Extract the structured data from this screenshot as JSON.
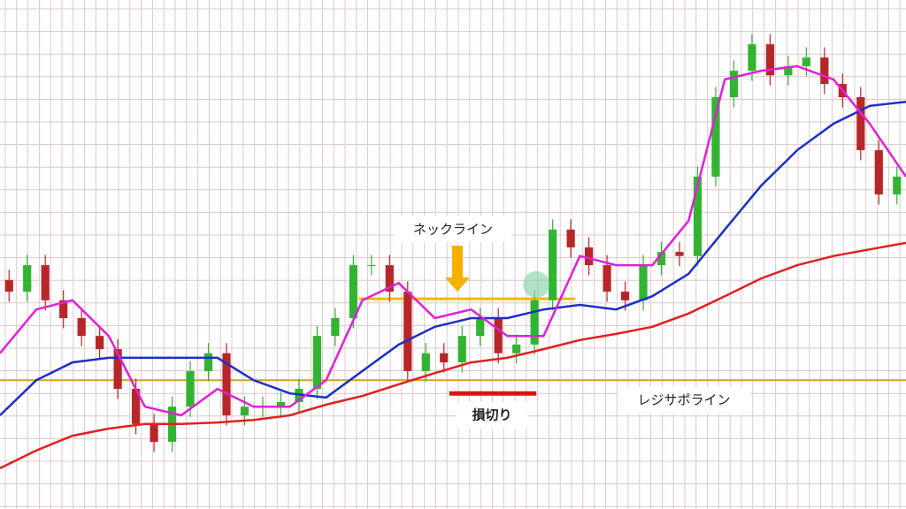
{
  "chart_data": {
    "type": "candlestick",
    "xlim": [
      0,
      100
    ],
    "ylim": [
      0,
      100
    ],
    "grid": true,
    "up_color": "#32b432",
    "down_color": "#b8262a",
    "x": [
      1,
      3,
      5,
      7,
      9,
      11,
      13,
      15,
      17,
      19,
      21,
      23,
      25,
      27,
      29,
      31,
      33,
      35,
      37,
      39,
      41,
      43,
      45,
      47,
      49,
      51,
      53,
      55,
      57,
      59,
      61,
      63,
      65,
      67,
      69,
      71,
      73,
      75,
      77,
      79,
      81,
      83,
      85,
      87,
      89,
      91,
      93,
      95,
      97,
      99
    ],
    "open": [
      45.0,
      42.7,
      47.9,
      41.0,
      37.5,
      34.0,
      31.4,
      23.6,
      16.7,
      13.2,
      20.1,
      27.1,
      30.6,
      18.4,
      20.1,
      20.1,
      21.0,
      23.6,
      34.0,
      37.5,
      47.9,
      47.9,
      42.7,
      27.1,
      30.6,
      28.8,
      34.0,
      37.5,
      30.6,
      32.3,
      41.0,
      54.9,
      51.4,
      47.9,
      42.7,
      41.0,
      47.9,
      50.5,
      49.7,
      65.3,
      80.9,
      86.1,
      91.3,
      85.2,
      87.0,
      88.7,
      83.5,
      80.9,
      70.5,
      61.8
    ],
    "close": [
      42.7,
      47.9,
      41.0,
      37.5,
      34.0,
      31.4,
      23.6,
      16.7,
      13.2,
      20.1,
      27.1,
      30.6,
      18.4,
      20.1,
      20.1,
      21.0,
      23.6,
      34.0,
      37.5,
      47.9,
      47.9,
      42.7,
      27.1,
      30.6,
      28.8,
      34.0,
      37.5,
      30.6,
      32.3,
      41.0,
      54.9,
      51.4,
      47.9,
      42.7,
      41.0,
      47.9,
      50.5,
      49.7,
      65.3,
      80.9,
      86.1,
      91.3,
      85.2,
      87.0,
      88.7,
      83.5,
      80.9,
      70.5,
      61.8,
      65.3
    ],
    "high": [
      47.0,
      49.9,
      49.9,
      43.0,
      39.5,
      36.0,
      33.4,
      25.6,
      18.7,
      22.1,
      29.1,
      32.6,
      32.6,
      22.1,
      22.1,
      23.0,
      25.6,
      36.0,
      39.5,
      49.9,
      49.9,
      49.9,
      44.7,
      32.6,
      32.6,
      36.0,
      39.5,
      39.5,
      34.3,
      43.0,
      56.9,
      56.9,
      53.4,
      49.9,
      44.7,
      49.9,
      52.5,
      52.5,
      67.3,
      82.9,
      88.1,
      93.3,
      93.3,
      89.0,
      90.7,
      90.7,
      85.5,
      82.9,
      72.5,
      67.3
    ],
    "low": [
      40.7,
      40.7,
      39.0,
      35.5,
      32.0,
      29.4,
      21.6,
      14.7,
      11.2,
      11.2,
      18.1,
      25.1,
      16.4,
      16.4,
      18.1,
      18.1,
      19.0,
      21.6,
      32.0,
      35.5,
      45.9,
      40.7,
      25.1,
      25.1,
      26.8,
      26.8,
      32.0,
      28.6,
      28.6,
      30.3,
      39.0,
      49.4,
      45.9,
      40.7,
      39.0,
      39.0,
      45.9,
      47.7,
      47.7,
      63.3,
      78.9,
      84.1,
      83.2,
      83.2,
      85.0,
      81.5,
      78.9,
      68.5,
      59.8,
      59.8
    ],
    "lines": [
      {
        "color": "#1c2ec8",
        "x": [
          0,
          4,
          8,
          12,
          16,
          20,
          24,
          28,
          32,
          36,
          40,
          44,
          48,
          52,
          56,
          60,
          64,
          68,
          72,
          76,
          80,
          84,
          88,
          92,
          96,
          100
        ],
        "values": [
          18.4,
          25.3,
          28.8,
          29.7,
          29.7,
          29.7,
          29.7,
          25.3,
          22.7,
          21.9,
          27.1,
          32.3,
          35.8,
          37.5,
          37.5,
          39.2,
          40.1,
          39.2,
          41.8,
          46.2,
          54.9,
          63.5,
          70.5,
          75.7,
          79.2,
          80.0
        ]
      },
      {
        "color": "#e020d8",
        "x": [
          0,
          4,
          8,
          12,
          16,
          20,
          24,
          28,
          32,
          36,
          40,
          44,
          48,
          52,
          56,
          60,
          64,
          68,
          72,
          76,
          80,
          84,
          88,
          92,
          96,
          100
        ],
        "values": [
          30.6,
          39.2,
          41.0,
          34.0,
          20.1,
          18.4,
          23.6,
          20.1,
          20.1,
          25.3,
          41.0,
          44.4,
          37.5,
          39.2,
          34.0,
          34.0,
          49.7,
          47.9,
          47.9,
          56.6,
          84.4,
          86.1,
          87.0,
          84.4,
          75.7,
          65.3
        ]
      },
      {
        "color": "#e02020",
        "x": [
          0,
          4,
          8,
          12,
          16,
          20,
          24,
          28,
          32,
          36,
          40,
          44,
          48,
          52,
          56,
          60,
          64,
          68,
          72,
          76,
          80,
          84,
          88,
          92,
          96,
          100
        ],
        "values": [
          8.0,
          11.5,
          14.4,
          15.8,
          16.7,
          16.7,
          17.0,
          17.5,
          18.4,
          20.5,
          22.2,
          24.5,
          26.7,
          28.8,
          29.7,
          31.4,
          33.2,
          34.4,
          35.8,
          38.4,
          41.8,
          45.3,
          47.9,
          49.7,
          51.0,
          52.3
        ]
      }
    ],
    "levels": [
      {
        "value": 41.3,
        "x": [
          39.6,
          63.5
        ],
        "color": "#f5b800",
        "width": 3
      },
      {
        "value": 25.3,
        "x": [
          0,
          100
        ],
        "color": "#d4a020",
        "width": 2
      },
      {
        "value": 22.7,
        "x": [
          49.6,
          59.2
        ],
        "color": "#e01010",
        "width": 5
      }
    ],
    "marker": {
      "x": 59.2,
      "value": 44.1,
      "color": "#7fd0a0"
    },
    "annotations": [
      "ネックライン",
      "レジサポライン",
      "損切り"
    ]
  }
}
